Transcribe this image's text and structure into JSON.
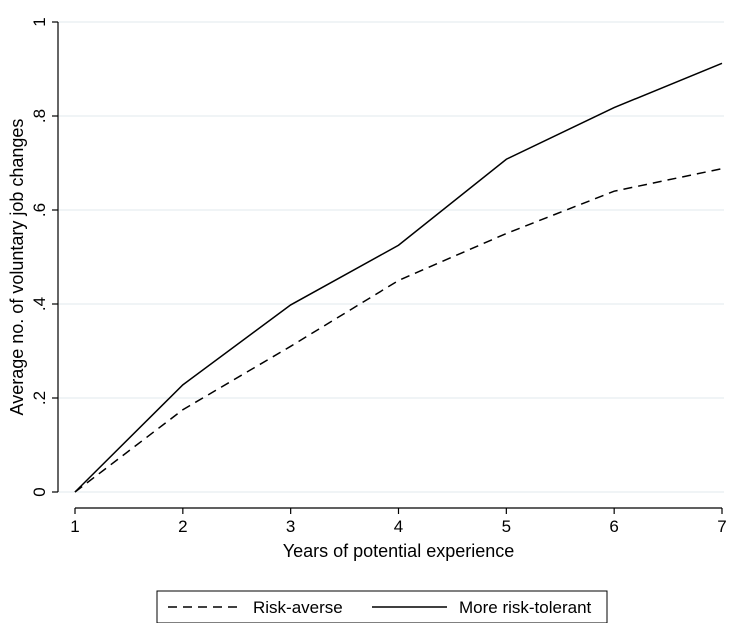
{
  "chart_data": {
    "type": "line",
    "title": "",
    "xlabel": "Years of potential experience",
    "ylabel": "Average no. of voluntary job changes",
    "x": [
      1,
      2,
      3,
      4,
      5,
      6,
      7
    ],
    "x_tick_labels": [
      "1",
      "2",
      "3",
      "4",
      "5",
      "6",
      "7"
    ],
    "y_tick_labels": [
      "0",
      ".2",
      ".4",
      ".6",
      ".8",
      "1"
    ],
    "y_ticks": [
      0,
      0.2,
      0.4,
      0.6,
      0.8,
      1
    ],
    "xlim": [
      1,
      7
    ],
    "ylim": [
      0,
      1
    ],
    "grid": true,
    "legend_position": "bottom",
    "series": [
      {
        "name": "Risk-averse",
        "style": "dashed",
        "color": "#000000",
        "values": [
          0.0,
          0.175,
          0.31,
          0.45,
          0.55,
          0.64,
          0.688
        ]
      },
      {
        "name": "More risk-tolerant",
        "style": "solid",
        "color": "#000000",
        "values": [
          0.0,
          0.228,
          0.398,
          0.525,
          0.708,
          0.818,
          0.912
        ]
      }
    ]
  }
}
